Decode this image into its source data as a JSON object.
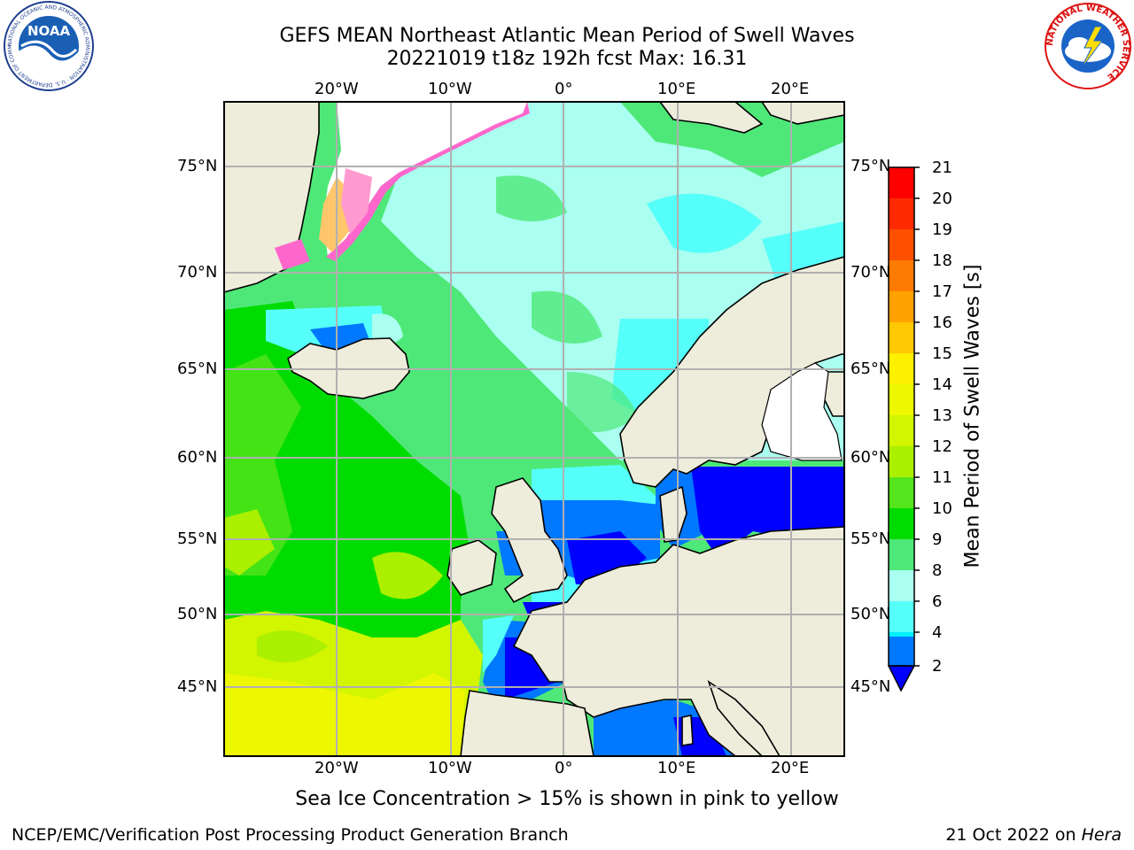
{
  "header": {
    "title_line1": "GEFS MEAN Northeast Atlantic Mean Period of Swell Waves",
    "title_line2": "20221019 t18z 192h fcst   Max: 16.31"
  },
  "logos": {
    "left": "NOAA",
    "left_ring_text": "NATIONAL OCEANIC AND ATMOSPHERIC ADMINISTRATION · U.S. DEPARTMENT OF COMMERCE",
    "right_ring_text": "NATIONAL WEATHER SERVICE"
  },
  "map": {
    "lon_labels_top": [
      "20°W",
      "10°W",
      "0°",
      "10°E",
      "20°E"
    ],
    "lon_labels_bottom": [
      "20°W",
      "10°W",
      "0°",
      "10°E",
      "20°E"
    ],
    "lat_labels_left": [
      "75°N",
      "70°N",
      "65°N",
      "60°N",
      "55°N",
      "50°N",
      "45°N"
    ],
    "lat_labels_right": [
      "75°N",
      "70°N",
      "65°N",
      "60°N",
      "55°N",
      "50°N",
      "45°N"
    ]
  },
  "colorbar": {
    "label": "Mean Period of Swell Waves [s]",
    "ticks": [
      "21",
      "20",
      "19",
      "18",
      "17",
      "16",
      "15",
      "14",
      "13",
      "12",
      "11",
      "10",
      "9",
      "8",
      "6",
      "4",
      "2"
    ],
    "colors": [
      "#ff0000",
      "#ff2a00",
      "#ff5000",
      "#ff7a00",
      "#ffa200",
      "#ffc800",
      "#fff000",
      "#ecf700",
      "#d2f500",
      "#aaf000",
      "#55e51c",
      "#00dc00",
      "#4ee878",
      "#aafff0",
      "#55fffa",
      "#00f0ff",
      "#0078ff"
    ],
    "under_color": "#0000ff"
  },
  "caption": "Sea Ice Concentration > 15% is shown in pink to yellow",
  "footer": {
    "left": "NCEP/EMC/Verification Post Processing Product Generation Branch",
    "right_date": "21 Oct 2022 on",
    "right_host": "Hera"
  }
}
